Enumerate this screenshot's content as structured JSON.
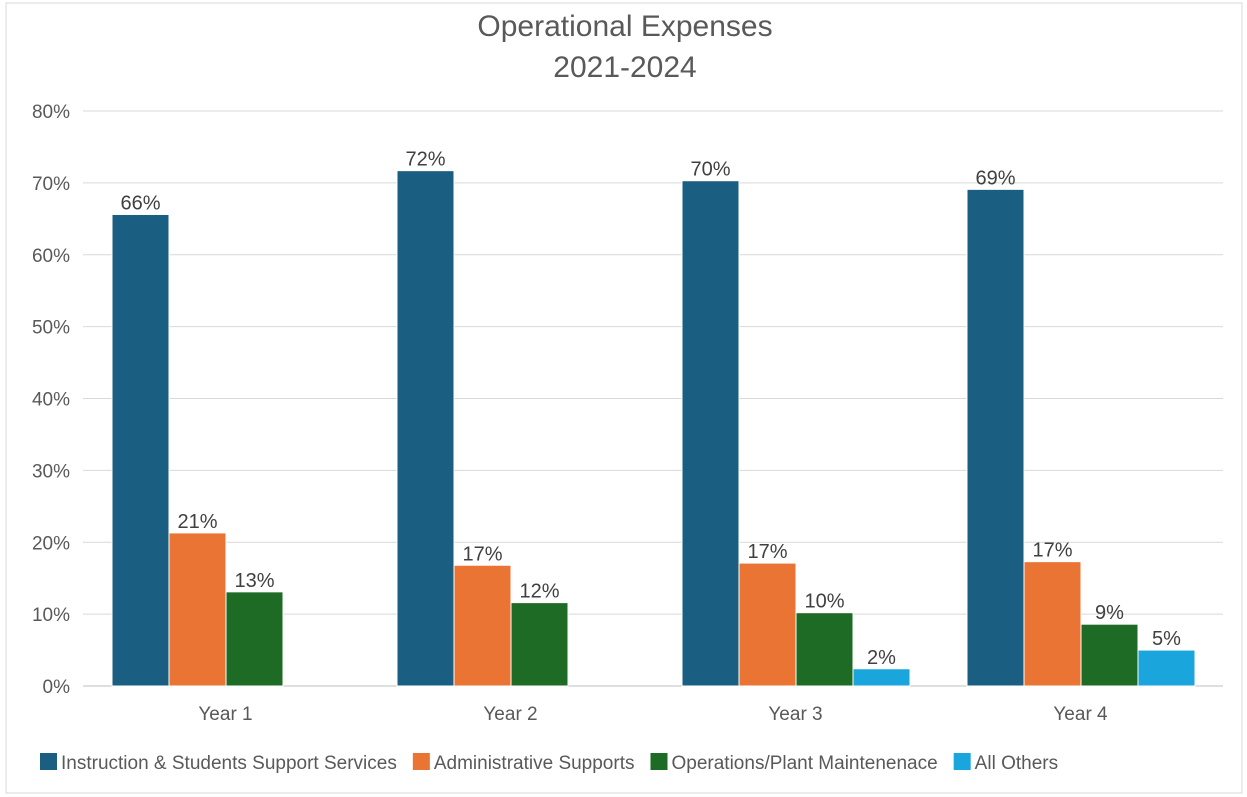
{
  "chart_data": {
    "type": "bar",
    "title": "Operational Expenses",
    "subtitle": "2021-2024",
    "xlabel": "",
    "ylabel": "",
    "ylim": [
      0,
      80
    ],
    "yticks": [
      "0%",
      "10%",
      "20%",
      "30%",
      "40%",
      "50%",
      "60%",
      "70%",
      "80%"
    ],
    "grid": true,
    "legend_position": "bottom",
    "categories": [
      "Year 1",
      "Year 2",
      "Year 3",
      "Year 4"
    ],
    "series": [
      {
        "name": "Instruction & Students Support Services",
        "color": "#1a5f82",
        "values": [
          65.6,
          71.7,
          70.3,
          69.1
        ],
        "labels": [
          "66%",
          "72%",
          "70%",
          "69%"
        ]
      },
      {
        "name": "Administrative Supports",
        "color": "#ea7434",
        "values": [
          21.3,
          16.8,
          17.1,
          17.3
        ],
        "labels": [
          "21%",
          "17%",
          "17%",
          "17%"
        ]
      },
      {
        "name": "Operations/Plant Maintenenace",
        "color": "#1e6b25",
        "values": [
          13.1,
          11.6,
          10.2,
          8.6
        ],
        "labels": [
          "13%",
          "12%",
          "10%",
          "9%"
        ]
      },
      {
        "name": "All Others",
        "color": "#1aa5dc",
        "values": [
          null,
          null,
          2.4,
          5.0
        ],
        "labels": [
          null,
          null,
          "2%",
          "5%"
        ]
      }
    ]
  }
}
